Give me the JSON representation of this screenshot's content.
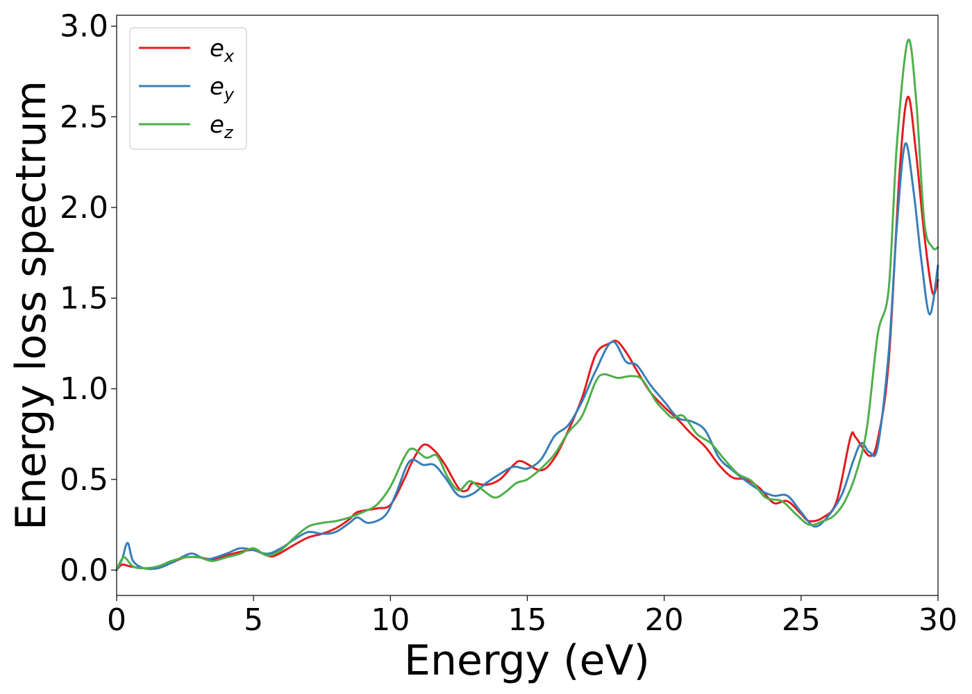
{
  "chart_data": {
    "type": "line",
    "xlabel": "Energy (eV)",
    "ylabel": "Energy loss spectrum",
    "xlim": [
      0,
      30
    ],
    "ylim": [
      -0.14,
      3.06
    ],
    "xticks": [
      0,
      5,
      10,
      15,
      20,
      25,
      30
    ],
    "yticks": [
      0.0,
      0.5,
      1.0,
      1.5,
      2.0,
      2.5,
      3.0
    ],
    "xtick_labels": [
      "0",
      "5",
      "10",
      "15",
      "20",
      "25",
      "30"
    ],
    "ytick_labels": [
      "0.0",
      "0.5",
      "1.0",
      "1.5",
      "2.0",
      "2.5",
      "3.0"
    ],
    "grid": false,
    "legend": {
      "position": "top-left"
    },
    "series": [
      {
        "name": "e",
        "subscript": "x",
        "color": "#e41a1c",
        "points": [
          [
            0,
            0
          ],
          [
            0.2,
            0.03
          ],
          [
            0.5,
            0.02
          ],
          [
            1,
            0.01
          ],
          [
            1.5,
            0.01
          ],
          [
            2,
            0.04
          ],
          [
            2.5,
            0.07
          ],
          [
            3,
            0.07
          ],
          [
            3.5,
            0.06
          ],
          [
            4,
            0.08
          ],
          [
            4.5,
            0.1
          ],
          [
            5,
            0.11
          ],
          [
            5.5,
            0.08
          ],
          [
            5.8,
            0.08
          ],
          [
            6.5,
            0.14
          ],
          [
            7,
            0.18
          ],
          [
            7.5,
            0.2
          ],
          [
            8,
            0.23
          ],
          [
            8.5,
            0.28
          ],
          [
            8.8,
            0.32
          ],
          [
            9.5,
            0.34
          ],
          [
            10,
            0.36
          ],
          [
            10.5,
            0.5
          ],
          [
            10.8,
            0.6
          ],
          [
            11.2,
            0.69
          ],
          [
            11.6,
            0.66
          ],
          [
            12,
            0.58
          ],
          [
            12.5,
            0.45
          ],
          [
            12.8,
            0.44
          ],
          [
            13,
            0.48
          ],
          [
            13.5,
            0.47
          ],
          [
            14,
            0.5
          ],
          [
            14.5,
            0.58
          ],
          [
            14.8,
            0.6
          ],
          [
            15.5,
            0.55
          ],
          [
            16,
            0.62
          ],
          [
            16.5,
            0.77
          ],
          [
            17,
            0.95
          ],
          [
            17.5,
            1.19
          ],
          [
            18,
            1.25
          ],
          [
            18.3,
            1.26
          ],
          [
            18.7,
            1.18
          ],
          [
            19,
            1.1
          ],
          [
            19.5,
            0.98
          ],
          [
            20,
            0.9
          ],
          [
            20.5,
            0.83
          ],
          [
            21,
            0.75
          ],
          [
            21.5,
            0.68
          ],
          [
            22,
            0.58
          ],
          [
            22.5,
            0.51
          ],
          [
            23,
            0.5
          ],
          [
            23.5,
            0.45
          ],
          [
            24,
            0.37
          ],
          [
            24.5,
            0.38
          ],
          [
            25,
            0.31
          ],
          [
            25.3,
            0.27
          ],
          [
            25.8,
            0.29
          ],
          [
            26.3,
            0.38
          ],
          [
            26.8,
            0.73
          ],
          [
            27,
            0.73
          ],
          [
            27.5,
            0.63
          ],
          [
            27.8,
            0.72
          ],
          [
            28.2,
            1.15
          ],
          [
            28.6,
            2.2
          ],
          [
            28.9,
            2.61
          ],
          [
            29.2,
            2.3
          ],
          [
            29.5,
            1.85
          ],
          [
            29.8,
            1.53
          ],
          [
            30,
            1.6
          ]
        ]
      },
      {
        "name": "e",
        "subscript": "y",
        "color": "#377eb8",
        "points": [
          [
            0,
            0
          ],
          [
            0.2,
            0.06
          ],
          [
            0.4,
            0.15
          ],
          [
            0.6,
            0.05
          ],
          [
            1,
            0.01
          ],
          [
            1.5,
            0.01
          ],
          [
            2,
            0.04
          ],
          [
            2.5,
            0.08
          ],
          [
            2.8,
            0.09
          ],
          [
            3.3,
            0.06
          ],
          [
            4,
            0.09
          ],
          [
            4.5,
            0.12
          ],
          [
            5,
            0.11
          ],
          [
            5.5,
            0.09
          ],
          [
            6,
            0.12
          ],
          [
            6.5,
            0.17
          ],
          [
            7,
            0.21
          ],
          [
            7.5,
            0.2
          ],
          [
            8,
            0.21
          ],
          [
            8.5,
            0.26
          ],
          [
            8.8,
            0.29
          ],
          [
            9.2,
            0.26
          ],
          [
            9.8,
            0.3
          ],
          [
            10.2,
            0.42
          ],
          [
            10.7,
            0.6
          ],
          [
            11.2,
            0.58
          ],
          [
            11.6,
            0.58
          ],
          [
            12,
            0.51
          ],
          [
            12.5,
            0.41
          ],
          [
            13,
            0.42
          ],
          [
            13.5,
            0.48
          ],
          [
            14,
            0.53
          ],
          [
            14.5,
            0.57
          ],
          [
            15,
            0.56
          ],
          [
            15.5,
            0.61
          ],
          [
            16,
            0.74
          ],
          [
            16.5,
            0.8
          ],
          [
            17,
            0.93
          ],
          [
            17.5,
            1.1
          ],
          [
            18.1,
            1.26
          ],
          [
            18.6,
            1.15
          ],
          [
            19,
            1.13
          ],
          [
            19.5,
            1.02
          ],
          [
            20,
            0.93
          ],
          [
            20.5,
            0.84
          ],
          [
            21,
            0.82
          ],
          [
            21.5,
            0.77
          ],
          [
            22,
            0.62
          ],
          [
            22.5,
            0.55
          ],
          [
            23,
            0.49
          ],
          [
            23.5,
            0.44
          ],
          [
            24,
            0.41
          ],
          [
            24.5,
            0.41
          ],
          [
            25,
            0.32
          ],
          [
            25.5,
            0.24
          ],
          [
            26,
            0.3
          ],
          [
            26.5,
            0.42
          ],
          [
            26.9,
            0.6
          ],
          [
            27.2,
            0.7
          ],
          [
            27.5,
            0.65
          ],
          [
            27.8,
            0.68
          ],
          [
            28.2,
            1.2
          ],
          [
            28.5,
            1.9
          ],
          [
            28.8,
            2.35
          ],
          [
            29.1,
            2.1
          ],
          [
            29.4,
            1.7
          ],
          [
            29.7,
            1.41
          ],
          [
            30,
            1.68
          ]
        ]
      },
      {
        "name": "e",
        "subscript": "z",
        "color": "#4daf4a",
        "points": [
          [
            0,
            0
          ],
          [
            0.15,
            0.05
          ],
          [
            0.3,
            0.07
          ],
          [
            0.6,
            0.02
          ],
          [
            1,
            0.01
          ],
          [
            1.5,
            0.02
          ],
          [
            2,
            0.05
          ],
          [
            2.5,
            0.07
          ],
          [
            3,
            0.07
          ],
          [
            3.5,
            0.05
          ],
          [
            4,
            0.07
          ],
          [
            4.5,
            0.09
          ],
          [
            5,
            0.12
          ],
          [
            5.5,
            0.08
          ],
          [
            6,
            0.11
          ],
          [
            6.5,
            0.18
          ],
          [
            7,
            0.24
          ],
          [
            7.5,
            0.26
          ],
          [
            8,
            0.27
          ],
          [
            8.5,
            0.29
          ],
          [
            9,
            0.32
          ],
          [
            9.5,
            0.36
          ],
          [
            10,
            0.46
          ],
          [
            10.5,
            0.62
          ],
          [
            10.8,
            0.67
          ],
          [
            11.3,
            0.62
          ],
          [
            11.7,
            0.63
          ],
          [
            12.1,
            0.51
          ],
          [
            12.5,
            0.44
          ],
          [
            12.9,
            0.49
          ],
          [
            13.3,
            0.45
          ],
          [
            13.8,
            0.4
          ],
          [
            14.2,
            0.43
          ],
          [
            14.6,
            0.48
          ],
          [
            15,
            0.5
          ],
          [
            15.5,
            0.56
          ],
          [
            16,
            0.64
          ],
          [
            16.5,
            0.76
          ],
          [
            17,
            0.85
          ],
          [
            17.5,
            1.04
          ],
          [
            17.8,
            1.08
          ],
          [
            18.3,
            1.06
          ],
          [
            18.8,
            1.07
          ],
          [
            19.2,
            1.05
          ],
          [
            19.7,
            0.93
          ],
          [
            20,
            0.88
          ],
          [
            20.3,
            0.84
          ],
          [
            20.7,
            0.85
          ],
          [
            21.2,
            0.75
          ],
          [
            21.7,
            0.7
          ],
          [
            22.2,
            0.61
          ],
          [
            22.7,
            0.53
          ],
          [
            23.2,
            0.49
          ],
          [
            23.7,
            0.4
          ],
          [
            24.3,
            0.38
          ],
          [
            24.8,
            0.31
          ],
          [
            25.3,
            0.25
          ],
          [
            25.8,
            0.27
          ],
          [
            26.2,
            0.3
          ],
          [
            26.6,
            0.38
          ],
          [
            27,
            0.53
          ],
          [
            27.4,
            0.78
          ],
          [
            27.8,
            1.3
          ],
          [
            28.2,
            1.55
          ],
          [
            28.5,
            2.35
          ],
          [
            28.9,
            2.92
          ],
          [
            29.2,
            2.6
          ],
          [
            29.5,
            1.92
          ],
          [
            29.8,
            1.78
          ],
          [
            30,
            1.78
          ]
        ]
      }
    ]
  }
}
